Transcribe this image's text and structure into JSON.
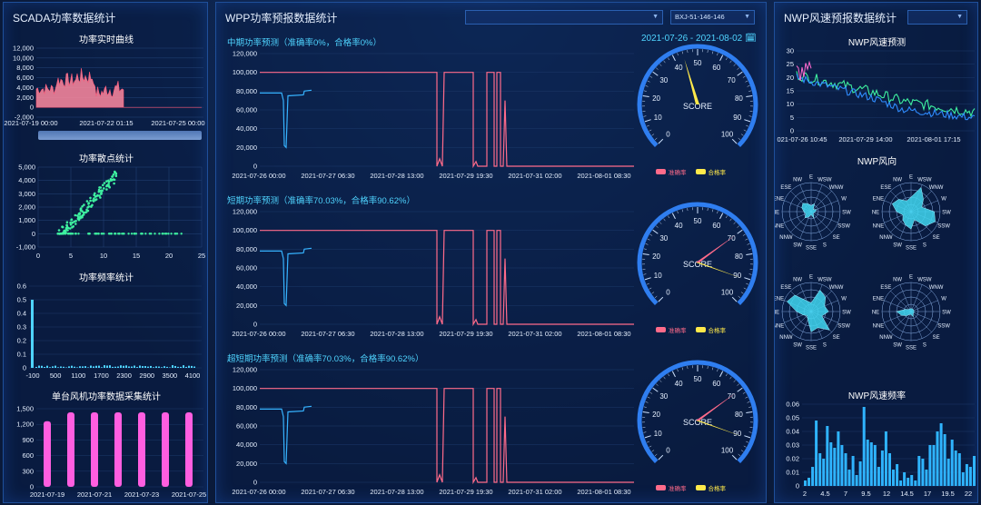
{
  "colors": {
    "accent_cyan": "#4fd4ff",
    "pink_line": "#ff6b8a",
    "blue_line": "#36b3ff",
    "yellow": "#ffe94a",
    "green": "#3ef0a0",
    "magenta_bar": "#ff5ee0",
    "panel_border": "#1f4f9a"
  },
  "scada": {
    "title": "SCADA功率数据统计",
    "power_curve": {
      "title": "功率实时曲线",
      "y_ticks": [
        "12,000",
        "10,000",
        "8,000",
        "6,000",
        "4,000",
        "2,000",
        "0",
        "-2,000"
      ],
      "x_ticks": [
        "2021-07-19 00:00",
        "2021-07-22 01:15",
        "2021-07-25 00:00"
      ]
    },
    "scatter": {
      "title": "功率散点统计",
      "y_ticks": [
        "5,000",
        "4,000",
        "3,000",
        "2,000",
        "1,000",
        "0",
        "-1,000"
      ],
      "x_ticks": [
        "0",
        "5",
        "10",
        "15",
        "20",
        "25"
      ]
    },
    "freq": {
      "title": "功率频率统计",
      "y_ticks": [
        "0.6",
        "0.5",
        "0.4",
        "0.3",
        "0.2",
        "0.1",
        "0"
      ],
      "x_ticks": [
        "-100",
        "500",
        "1100",
        "1700",
        "2300",
        "2900",
        "3500",
        "4100"
      ]
    },
    "turbine": {
      "title": "单台风机功率数据采集统计",
      "y_ticks": [
        "1,500",
        "1,200",
        "900",
        "600",
        "300",
        "0"
      ],
      "x_ticks": [
        "2021-07-19",
        "2021-07-21",
        "2021-07-23",
        "2021-07-25"
      ],
      "values": [
        1260,
        1430,
        1430,
        1430,
        1430,
        1430,
        1430
      ]
    }
  },
  "wpp": {
    "title": "WPP功率预报数据统计",
    "select1": "",
    "select2": "BXJ-51-146-146",
    "date_range": "2021-07-26 - 2021-08-02 🗓",
    "y_ticks": [
      "120,000",
      "100,000",
      "80,000",
      "60,000",
      "40,000",
      "20,000",
      "0"
    ],
    "x_ticks": [
      "2021-07-26 00:00",
      "2021-07-27 06:30",
      "2021-07-28 13:00",
      "2021-07-29 19:30",
      "2021-07-31 02:00",
      "2021-08-01 08:30"
    ],
    "legend": {
      "accuracy": "准确率",
      "pass": "合格率"
    },
    "gauge": {
      "label": "SCORE",
      "ticks": [
        "0",
        "10",
        "20",
        "30",
        "40",
        "50",
        "60",
        "70",
        "80",
        "90",
        "100"
      ]
    },
    "sections": [
      {
        "title": "中期功率预测（准确率0%，合格率0%）",
        "accuracy": 0,
        "pass": 0
      },
      {
        "title": "短期功率预测（准确率70.03%，合格率90.62%）",
        "accuracy": 70.03,
        "pass": 90.62
      },
      {
        "title": "超短期功率预测（准确率70.03%，合格率90.62%）",
        "accuracy": 70.03,
        "pass": 90.62
      }
    ]
  },
  "nwp": {
    "title": "NWP风速预报数据统计",
    "select": "",
    "speed": {
      "title": "NWP风速预测",
      "y_ticks": [
        "30",
        "25",
        "20",
        "15",
        "10",
        "5",
        "0"
      ],
      "x_ticks": [
        "021-07-26 10:45",
        "2021-07-29 14:00",
        "2021-08-01 17:15"
      ]
    },
    "direction": {
      "title": "NWP风向",
      "compass": [
        "E",
        "WSW",
        "WNW",
        "W",
        "SW",
        "SSW",
        "SE",
        "S",
        "SSE",
        "SW",
        "NNW",
        "NNE",
        "NE",
        "ENE",
        "ESE",
        "NW"
      ]
    },
    "freq": {
      "title": "NWP风速频率",
      "y_ticks": [
        "0.06",
        "0.05",
        "0.04",
        "0.03",
        "0.02",
        "0.01",
        "0"
      ],
      "x_ticks": [
        "2",
        "4.5",
        "7",
        "9.5",
        "12",
        "14.5",
        "17",
        "19.5",
        "22"
      ]
    }
  }
}
